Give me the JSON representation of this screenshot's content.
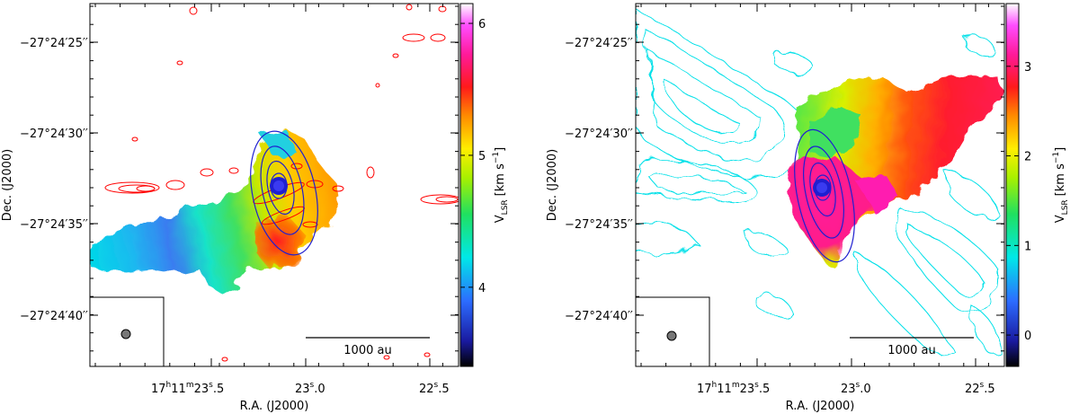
{
  "chart_data": [
    {
      "type": "heatmap",
      "panel": "left",
      "xlabel": "R.A. (J2000)",
      "ylabel": "Dec. (J2000)",
      "x_ticks": [
        {
          "label_main": "17",
          "sup_h": "h",
          "label_mid": "11",
          "sup_m": "m",
          "label_s": "23",
          "sup_s": "s",
          "label_frac": ".5",
          "full": "17h11m23s.5"
        },
        {
          "label_main": "",
          "label_s": "23",
          "sup_s": "s",
          "label_frac": ".0",
          "full": "23s.0"
        },
        {
          "label_main": "",
          "label_s": "22",
          "sup_s": "s",
          "label_frac": ".5",
          "full": "22s.5"
        }
      ],
      "y_ticks": [
        "−27°24′25′′",
        "−27°24′30′′",
        "−27°24′35′′",
        "−27°24′40′′"
      ],
      "colorbar": {
        "label_main": "V",
        "label_sub": "LSR",
        "label_unit": "[km s",
        "label_exp": "−1",
        "label_end": "]",
        "range": [
          3.4,
          6.15
        ],
        "ticks": [
          "4",
          "5",
          "6"
        ],
        "tick_values": [
          4,
          5,
          6
        ]
      },
      "scalebar_label": "1000 au",
      "contour_colors": {
        "outflow": "#ff0000",
        "continuum": "#0000cc"
      }
    },
    {
      "type": "heatmap",
      "panel": "right",
      "xlabel": "R.A. (J2000)",
      "ylabel": "Dec. (J2000)",
      "x_ticks": [
        {
          "label_main": "17",
          "sup_h": "h",
          "label_mid": "11",
          "sup_m": "m",
          "label_s": "23",
          "sup_s": "s",
          "label_frac": ".5",
          "full": "17h11m23s.5"
        },
        {
          "label_main": "",
          "label_s": "23",
          "sup_s": "s",
          "label_frac": ".0",
          "full": "23s.0"
        },
        {
          "label_main": "",
          "label_s": "22",
          "sup_s": "s",
          "label_frac": ".5",
          "full": "22s.5"
        }
      ],
      "y_ticks": [
        "−27°24′25′′",
        "−27°24′30′′",
        "−27°24′35′′",
        "−27°24′40′′"
      ],
      "colorbar": {
        "label_main": "V",
        "label_sub": "LSR",
        "label_unit": "[km s",
        "label_exp": "−1",
        "label_end": "]",
        "range": [
          -0.35,
          3.7
        ],
        "ticks": [
          "0",
          "1",
          "2",
          "3"
        ],
        "tick_values": [
          0,
          1,
          2,
          3
        ]
      },
      "scalebar_label": "1000 au",
      "contour_colors": {
        "outflow": "#00e5e5",
        "continuum": "#0000cc"
      }
    }
  ]
}
